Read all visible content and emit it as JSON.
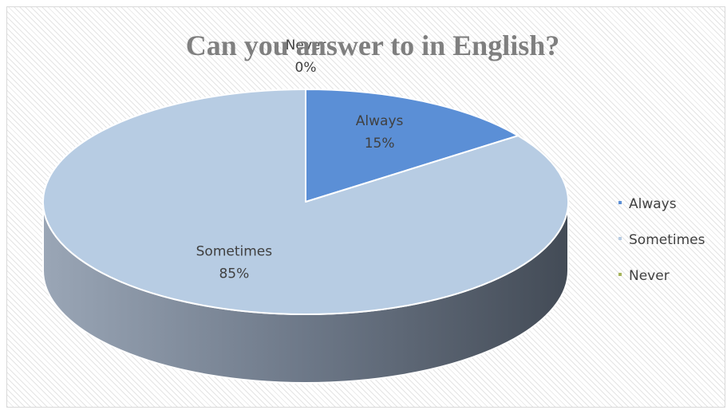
{
  "chart_data": {
    "type": "pie",
    "title": "Can you answer to in English?",
    "categories": [
      "Always",
      "Sometimes",
      "Never"
    ],
    "values": [
      15,
      85,
      0
    ],
    "value_labels": [
      "15%",
      "85%",
      "0%"
    ],
    "colors": [
      "#5b8fd6",
      "#b7cce3",
      "#a5b35a"
    ],
    "legend_position": "right",
    "style": "3d"
  }
}
